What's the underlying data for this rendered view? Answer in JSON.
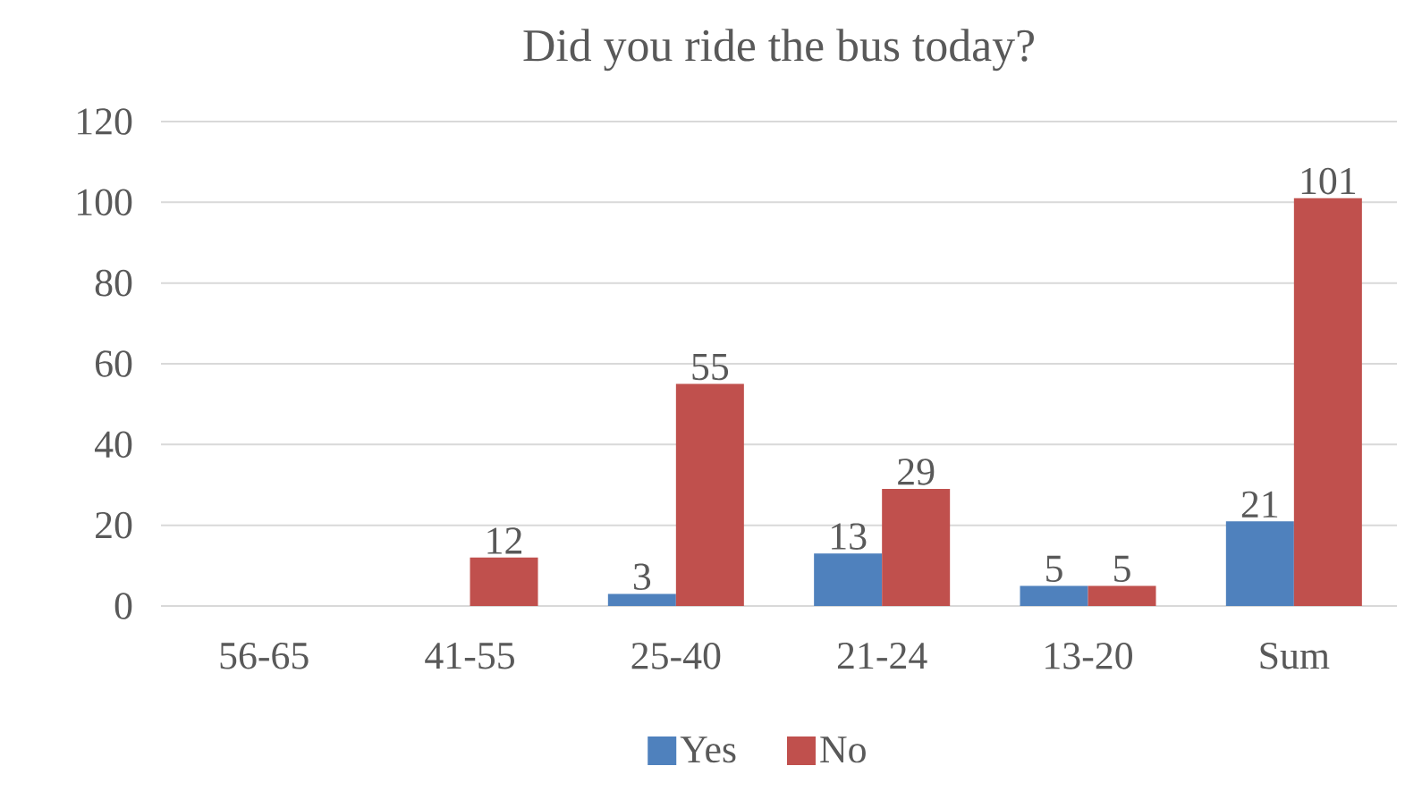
{
  "chart_data": {
    "type": "bar",
    "title": "Did you ride the bus today?",
    "categories": [
      "56-65",
      "41-55",
      "25-40",
      "21-24",
      "13-20",
      "Sum"
    ],
    "series": [
      {
        "name": "Yes",
        "color": "#4f81bd",
        "values": [
          null,
          null,
          3,
          13,
          5,
          21
        ]
      },
      {
        "name": "No",
        "color": "#c0504d",
        "values": [
          null,
          12,
          55,
          29,
          5,
          101
        ]
      }
    ],
    "ylim": [
      0,
      120
    ],
    "yticks": [
      0,
      20,
      40,
      60,
      80,
      100,
      120
    ],
    "grid": "y",
    "legend": "bottom",
    "data_labels": true
  }
}
